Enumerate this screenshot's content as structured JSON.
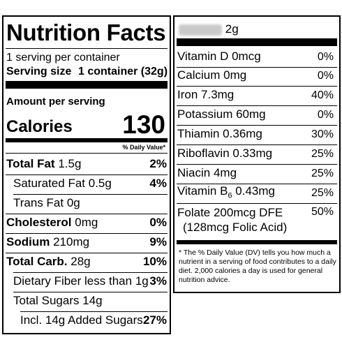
{
  "title": "Nutrition Facts",
  "servings_per_container": "1 serving per container",
  "serving_size_label": "Serving size",
  "serving_size_value": "1 container (32g)",
  "amount_per_serving": "Amount per serving",
  "calories_label": "Calories",
  "calories_value": "130",
  "daily_value_header": "% Daily Value*",
  "nutrients": [
    {
      "name": "Total Fat",
      "amount": "1.5g",
      "dv": "2%"
    },
    {
      "name": "Saturated Fat",
      "amount": "0.5g",
      "dv": "4%"
    },
    {
      "name": "Trans Fat",
      "amount": "0g",
      "dv": ""
    },
    {
      "name": "Cholesterol",
      "amount": "0mg",
      "dv": "0%"
    },
    {
      "name": "Sodium",
      "amount": "210mg",
      "dv": "9%"
    },
    {
      "name": "Total Carb.",
      "amount": "28g",
      "dv": "10%"
    },
    {
      "name": "Dietary Fiber less than",
      "amount": "1g",
      "dv": "3%"
    },
    {
      "name": "Total Sugars",
      "amount": "14g",
      "dv": ""
    },
    {
      "name": "Incl. 14g Added Sugars",
      "amount": "",
      "dv": "27%"
    }
  ],
  "protein_amount": "2g",
  "vitamins": [
    {
      "name": "Vitamin D 0mcg",
      "dv": "0%"
    },
    {
      "name": "Calcium 0mg",
      "dv": "0%"
    },
    {
      "name": "Iron 7.3mg",
      "dv": "40%"
    },
    {
      "name": "Potassium 60mg",
      "dv": "0%"
    },
    {
      "name": "Thiamin 0.36mg",
      "dv": "30%"
    },
    {
      "name": "Riboflavin 0.33mg",
      "dv": "25%"
    },
    {
      "name": "Niacin 4mg",
      "dv": "25%"
    },
    {
      "name": "Vitamin B6 0.43mg",
      "name_prefix": "Vitamin B",
      "name_sub": "6",
      "name_suffix": " 0.43mg",
      "dv": "25%"
    },
    {
      "name": "Folate 200mcg DFE",
      "line2": "(128mcg Folic Acid)",
      "dv": "50%"
    }
  ],
  "footnote": "* The % Daily Value (DV) tells you how much a nutrient in a serving of food contributes to a daily diet. 2,000 calories a day is used for general nutrition advice."
}
